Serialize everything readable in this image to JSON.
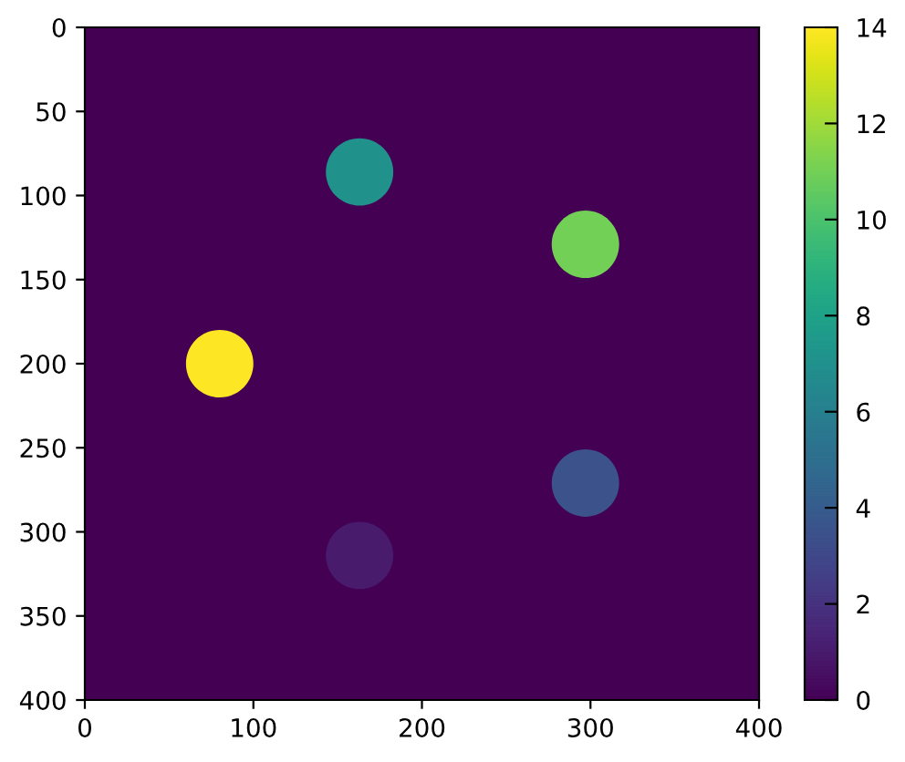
{
  "chart_data": {
    "type": "scatter",
    "x": [
      80,
      163,
      297,
      297,
      163
    ],
    "values": [
      200,
      86,
      129,
      271,
      314
    ],
    "cvalues": [
      14,
      7,
      11,
      3.5,
      1
    ],
    "marker": "circle",
    "xlim": [
      0,
      400
    ],
    "ylim": [
      400,
      0
    ],
    "xticks": [
      0,
      100,
      200,
      300,
      400
    ],
    "yticks": [
      0,
      50,
      100,
      150,
      200,
      250,
      300,
      350,
      400
    ],
    "clim": [
      0,
      14
    ],
    "cticks": [
      0,
      2,
      4,
      6,
      8,
      10,
      12,
      14
    ],
    "grid": false
  }
}
